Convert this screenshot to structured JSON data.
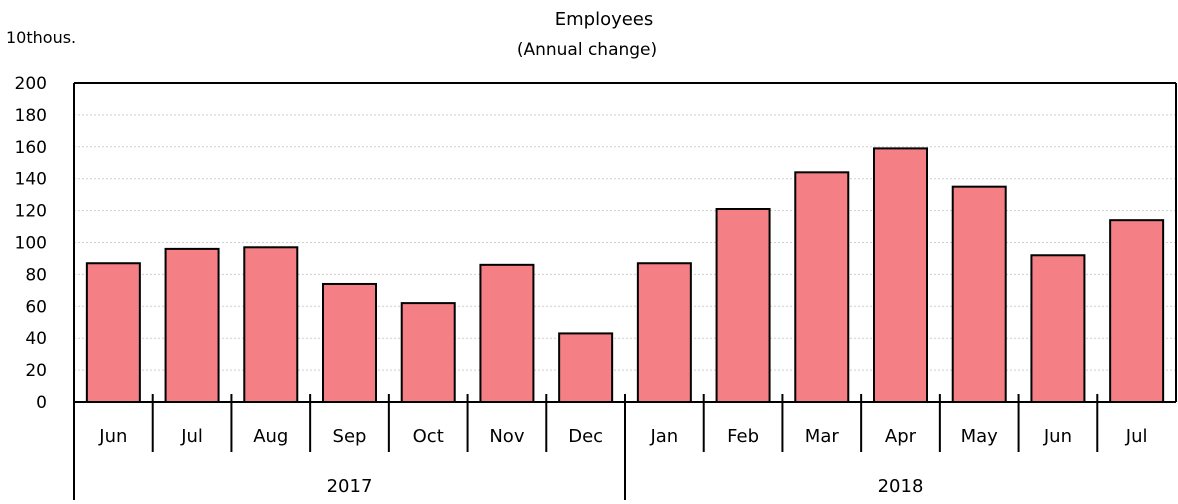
{
  "chart_data": {
    "type": "bar",
    "title": "Employees",
    "subtitle": "(Annual change)",
    "unit_label": "10thous.",
    "ylim": [
      0,
      200
    ],
    "y_ticks": [
      "0",
      "20",
      "40",
      "60",
      "80",
      "100",
      "120",
      "140",
      "160",
      "180",
      "200"
    ],
    "grid": true,
    "categories": [
      "Jun",
      "Jul",
      "Aug",
      "Sep",
      "Oct",
      "Nov",
      "Dec",
      "Jan",
      "Feb",
      "Mar",
      "Apr",
      "May",
      "Jun",
      "Jul"
    ],
    "values": [
      87,
      96,
      97,
      74,
      62,
      86,
      43,
      87,
      121,
      144,
      159,
      135,
      92,
      114
    ],
    "year_groups": [
      {
        "label": "2017",
        "count": 7
      },
      {
        "label": "2018",
        "count": 7
      }
    ],
    "bar_color": "#f47f85"
  }
}
